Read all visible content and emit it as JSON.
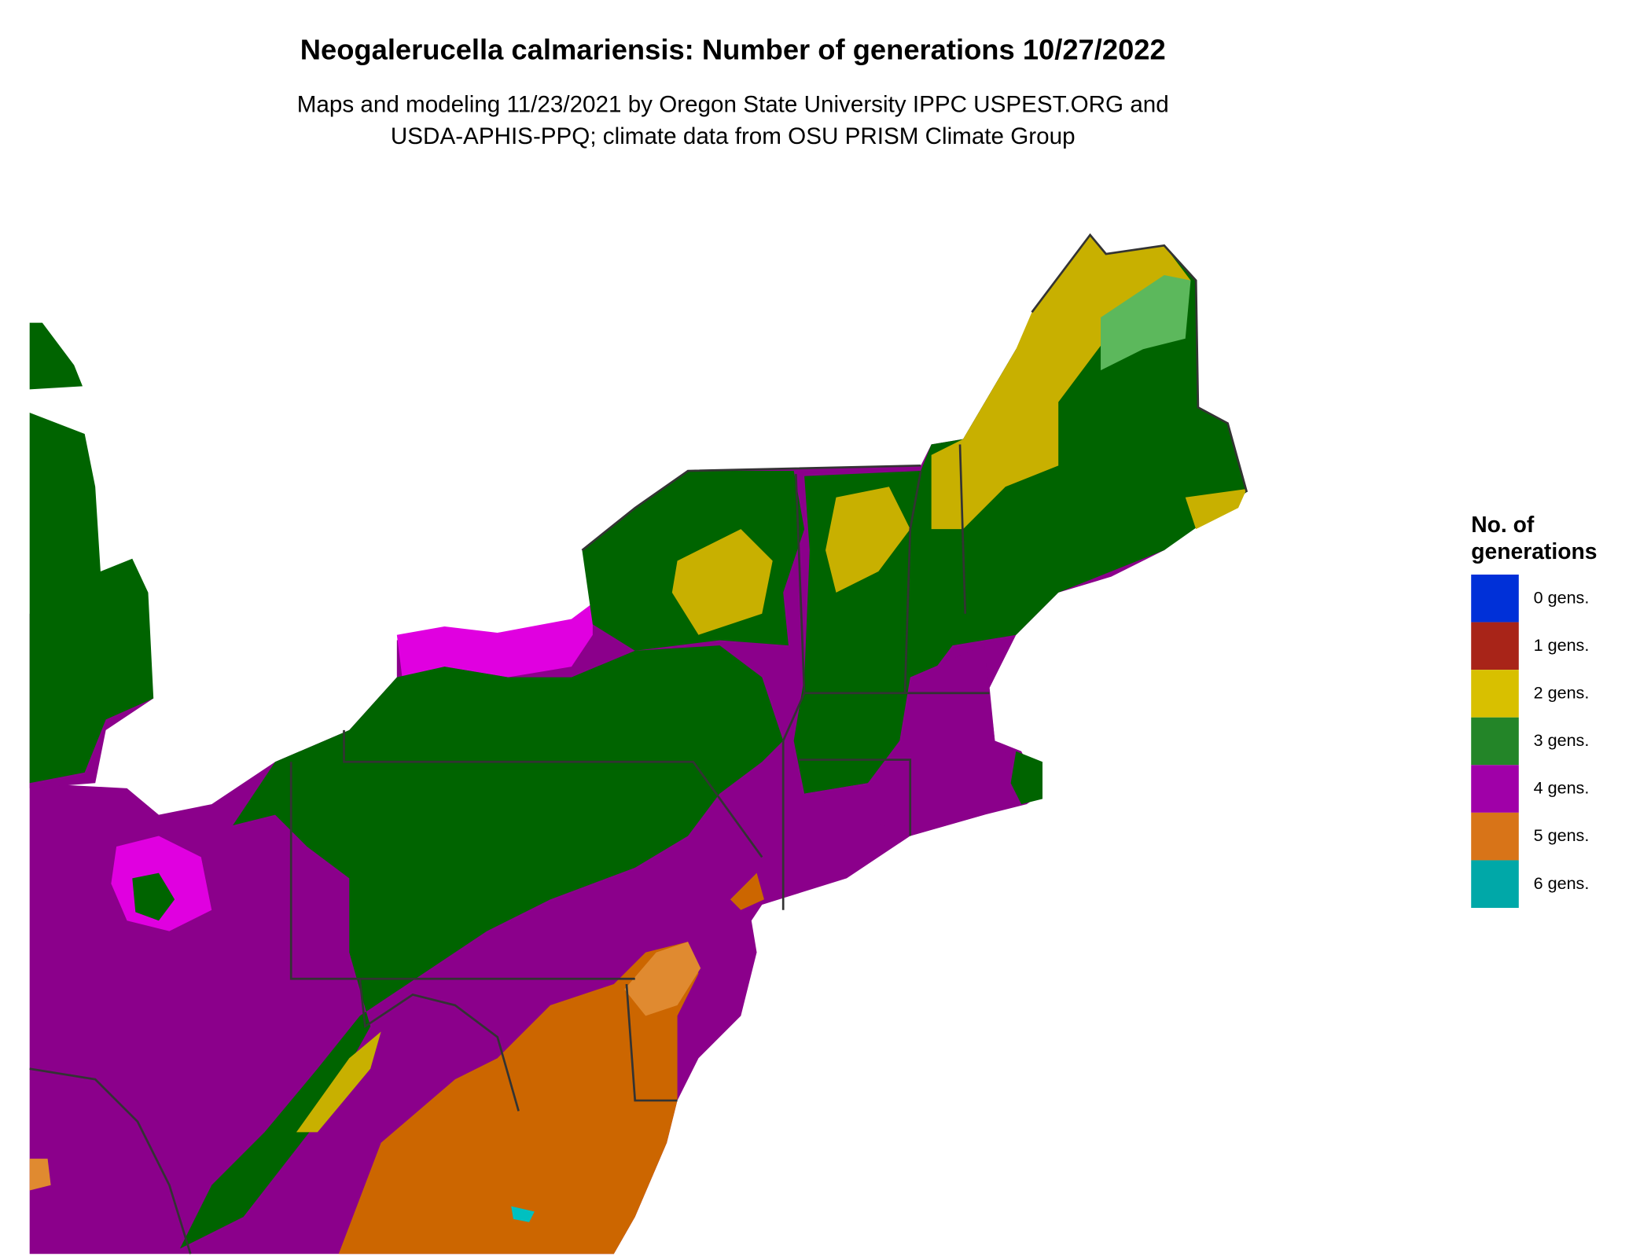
{
  "title": "Neogalerucella calmariensis: Number of generations 10/27/2022",
  "subtitle_lines": [
    "Maps and modeling 11/23/2021 by Oregon State University IPPC USPEST.ORG and",
    "USDA-APHIS-PPQ; climate data from OSU PRISM Climate Group"
  ],
  "legend": {
    "title_lines": [
      "No. of",
      "generations"
    ],
    "items": [
      {
        "label": "0 gens.",
        "color": "#0030d8"
      },
      {
        "label": "1 gens.",
        "color": "#a82418"
      },
      {
        "label": "2 gens.",
        "color": "#d8c000"
      },
      {
        "label": "3 gens.",
        "color": "#238528"
      },
      {
        "label": "4 gens.",
        "color": "#a000a8"
      },
      {
        "label": "5 gens.",
        "color": "#d87418"
      },
      {
        "label": "6 gens.",
        "color": "#00a8a8"
      }
    ]
  },
  "map_colors": {
    "four_gens": "#8b008b",
    "four_gens_high": "#e000e0",
    "three_gens": "#006400",
    "three_gens_light": "#5cb85c",
    "two_gens": "#c8b000",
    "five_gens": "#cc6600",
    "five_gens_light": "#e08a30",
    "six_gens": "#00c0c0",
    "state_lines": "#333333"
  }
}
